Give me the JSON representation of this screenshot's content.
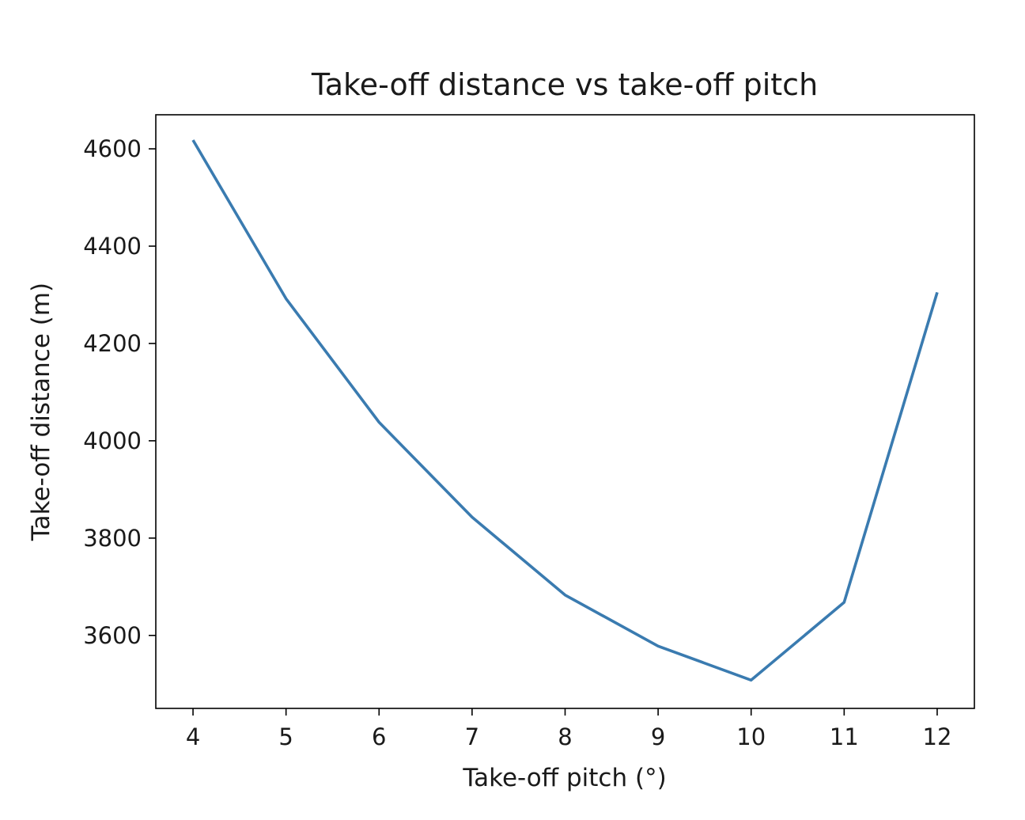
{
  "chart_data": {
    "type": "line",
    "title": "Take-off distance vs take-off pitch",
    "xlabel": "Take-off pitch (°)",
    "ylabel": "Take-off distance (m)",
    "xlim": [
      3.6,
      12.4
    ],
    "ylim": [
      3450,
      4670
    ],
    "xticks": [
      4,
      5,
      6,
      7,
      8,
      9,
      10,
      11,
      12
    ],
    "yticks": [
      3600,
      3800,
      4000,
      4200,
      4400,
      4600
    ],
    "grid": false,
    "line_color": "#3a7bb0",
    "series": [
      {
        "x": [
          4,
          5,
          6,
          7,
          8,
          9,
          10,
          11,
          12
        ],
        "y": [
          4618,
          4292,
          4038,
          3843,
          3683,
          3578,
          3508,
          3668,
          4305
        ]
      }
    ]
  }
}
